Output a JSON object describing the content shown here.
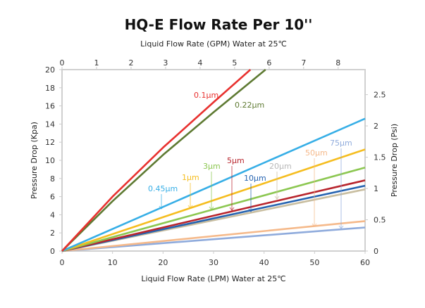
{
  "chart_data": {
    "type": "line",
    "title": "HQ-E Flow Rate Per 10''",
    "xlabel": "Liquid  Flow  Rate  (LPM)  Water at 25℃",
    "x2label": "Liquid  Flow  Rate  (GPM)  Water at 25℃",
    "ylabel": "Pressure  Drop  (Kpa)",
    "y2label": "Pressure  Drop  (Psi)",
    "xlim": [
      0,
      60
    ],
    "ylim": [
      0,
      20
    ],
    "x2lim": [
      0,
      8.78
    ],
    "y2lim": [
      0,
      2.9
    ],
    "xticks": [
      "0",
      "10",
      "20",
      "30",
      "40",
      "50",
      "60"
    ],
    "yticks": [
      "0",
      "2",
      "4",
      "6",
      "8",
      "10",
      "12",
      "14",
      "16",
      "18",
      "20"
    ],
    "x2ticks": [
      "0",
      "1",
      "2",
      "3",
      "4",
      "5",
      "6",
      "7",
      "8"
    ],
    "y2ticks": [
      "0",
      "0.5",
      "1",
      "1.5",
      "2",
      "2.5"
    ],
    "grid": false,
    "series": [
      {
        "name": "0.1μm",
        "color": "#e8312f",
        "points": [
          [
            0,
            0
          ],
          [
            10,
            6.0
          ],
          [
            20,
            11.4
          ],
          [
            30,
            16.4
          ],
          [
            37.3,
            20
          ]
        ]
      },
      {
        "name": "0.22μm",
        "color": "#5e7a32",
        "points": [
          [
            0,
            0
          ],
          [
            10,
            5.5
          ],
          [
            20,
            10.6
          ],
          [
            30,
            15.3
          ],
          [
            40.3,
            20
          ]
        ]
      },
      {
        "name": "0.45μm",
        "color": "#36aee6",
        "points": [
          [
            0,
            0
          ],
          [
            60,
            14.6
          ]
        ]
      },
      {
        "name": "1μm",
        "color": "#f5bd1f",
        "points": [
          [
            0,
            0
          ],
          [
            60,
            11.2
          ]
        ]
      },
      {
        "name": "3μm",
        "color": "#8cc751",
        "points": [
          [
            0,
            0
          ],
          [
            60,
            9.2
          ]
        ]
      },
      {
        "name": "5μm",
        "color": "#b8252d",
        "points": [
          [
            0,
            0
          ],
          [
            60,
            7.8
          ]
        ]
      },
      {
        "name": "10μm",
        "color": "#2563b0",
        "points": [
          [
            0,
            0
          ],
          [
            60,
            7.2
          ]
        ]
      },
      {
        "name": "20μm",
        "color": "#c9bea0",
        "label_color": "#b8b8b8",
        "points": [
          [
            0,
            0
          ],
          [
            60,
            6.8
          ]
        ]
      },
      {
        "name": "50μm",
        "color": "#f5b98a",
        "points": [
          [
            0,
            0
          ],
          [
            60,
            3.3
          ]
        ]
      },
      {
        "name": "75μm",
        "color": "#8fabdc",
        "points": [
          [
            0,
            0
          ],
          [
            60,
            2.6
          ]
        ]
      }
    ]
  }
}
